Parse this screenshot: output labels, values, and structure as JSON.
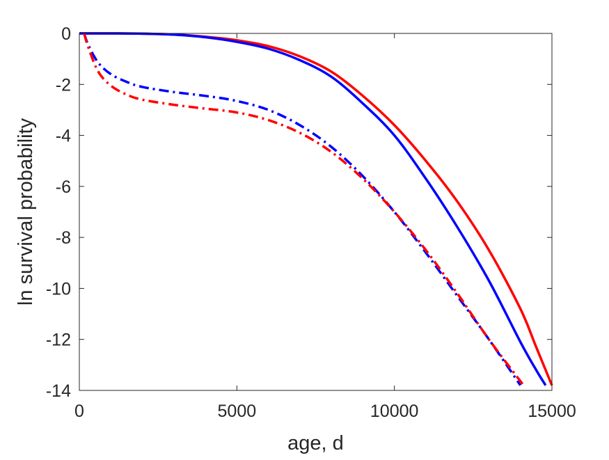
{
  "chart_data": {
    "type": "line",
    "title": "",
    "xlabel": "age, d",
    "ylabel": "ln survival probability",
    "xlim": [
      0,
      15000
    ],
    "ylim": [
      -14,
      0
    ],
    "xticks": [
      0,
      5000,
      10000,
      15000
    ],
    "yticks": [
      0,
      -2,
      -4,
      -6,
      -8,
      -10,
      -12,
      -14
    ],
    "x_tick_labels": [
      "0",
      "5000",
      "10000",
      "15000"
    ],
    "y_tick_labels": [
      "0",
      "-2",
      "-4",
      "-6",
      "-8",
      "-10",
      "-12",
      "-14"
    ],
    "grid": false,
    "legend": "none",
    "series": [
      {
        "color": "#ff0000",
        "style": "solid",
        "points": [
          [
            0,
            0
          ],
          [
            1000,
            0
          ],
          [
            2000,
            -0.01
          ],
          [
            3000,
            -0.04
          ],
          [
            4000,
            -0.13
          ],
          [
            5000,
            -0.27
          ],
          [
            6000,
            -0.5
          ],
          [
            7000,
            -0.9
          ],
          [
            8000,
            -1.5
          ],
          [
            9000,
            -2.45
          ],
          [
            10000,
            -3.6
          ],
          [
            11000,
            -5.0
          ],
          [
            12000,
            -6.6
          ],
          [
            13000,
            -8.5
          ],
          [
            14000,
            -10.8
          ],
          [
            14500,
            -12.3
          ],
          [
            15000,
            -13.8
          ]
        ]
      },
      {
        "color": "#0000ff",
        "style": "solid",
        "points": [
          [
            0,
            0
          ],
          [
            1000,
            0
          ],
          [
            2000,
            -0.01
          ],
          [
            3000,
            -0.05
          ],
          [
            4000,
            -0.15
          ],
          [
            5000,
            -0.33
          ],
          [
            6000,
            -0.6
          ],
          [
            7000,
            -1.05
          ],
          [
            8000,
            -1.7
          ],
          [
            9000,
            -2.75
          ],
          [
            10000,
            -4.0
          ],
          [
            11000,
            -5.7
          ],
          [
            12000,
            -7.6
          ],
          [
            13000,
            -9.7
          ],
          [
            14000,
            -12.1
          ],
          [
            14500,
            -13.2
          ],
          [
            14800,
            -13.8
          ]
        ]
      },
      {
        "color": "#0000ff",
        "style": "dash-dot",
        "points": [
          [
            150,
            0
          ],
          [
            300,
            -0.5
          ],
          [
            600,
            -1.15
          ],
          [
            1000,
            -1.6
          ],
          [
            1500,
            -1.9
          ],
          [
            2000,
            -2.1
          ],
          [
            3000,
            -2.3
          ],
          [
            4000,
            -2.45
          ],
          [
            5000,
            -2.65
          ],
          [
            6000,
            -3.0
          ],
          [
            7000,
            -3.6
          ],
          [
            8000,
            -4.45
          ],
          [
            9000,
            -5.6
          ],
          [
            10000,
            -7.0
          ],
          [
            11000,
            -8.6
          ],
          [
            12000,
            -10.3
          ],
          [
            13000,
            -12.0
          ],
          [
            14000,
            -13.8
          ]
        ]
      },
      {
        "color": "#ff0000",
        "style": "dash-dot",
        "points": [
          [
            150,
            0
          ],
          [
            300,
            -0.6
          ],
          [
            600,
            -1.5
          ],
          [
            1000,
            -2.05
          ],
          [
            1500,
            -2.4
          ],
          [
            2000,
            -2.6
          ],
          [
            3000,
            -2.8
          ],
          [
            4000,
            -2.95
          ],
          [
            5000,
            -3.1
          ],
          [
            6000,
            -3.4
          ],
          [
            7000,
            -3.9
          ],
          [
            8000,
            -4.65
          ],
          [
            9000,
            -5.7
          ],
          [
            10000,
            -7.0
          ],
          [
            11000,
            -8.5
          ],
          [
            12000,
            -10.2
          ],
          [
            13000,
            -12.0
          ],
          [
            14100,
            -13.8
          ]
        ]
      }
    ]
  }
}
